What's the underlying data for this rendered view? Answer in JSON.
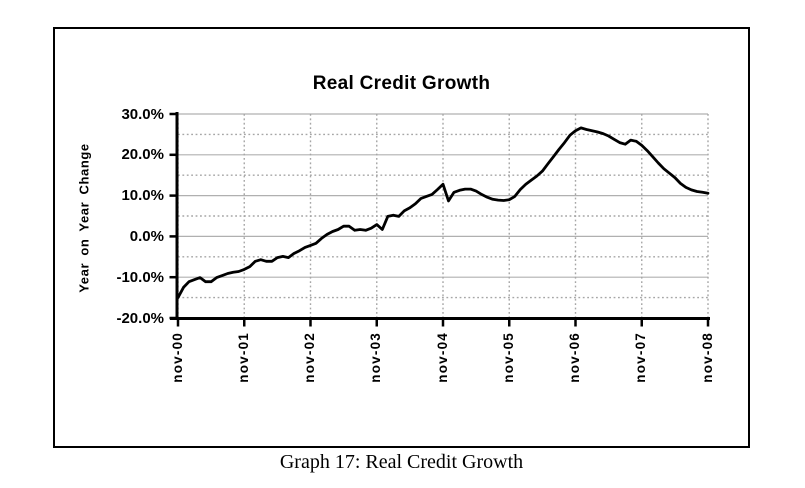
{
  "figure": {
    "caption": "Graph 17: Real Credit Growth"
  },
  "chart_data": {
    "type": "line",
    "title": "Real Credit Growth",
    "xlabel": "",
    "ylabel": "Year on Year Change",
    "frequency": "monthly",
    "x_start": "nov-00",
    "x_end": "nov-08",
    "x_tick_labels": [
      "nov-00",
      "nov-01",
      "nov-02",
      "nov-03",
      "nov-04",
      "nov-05",
      "nov-06",
      "nov-07",
      "nov-08"
    ],
    "y_tick_labels": [
      "30.0%",
      "20.0%",
      "10.0%",
      "0.0%",
      "-10.0%",
      "-20.0%"
    ],
    "y_major_ticks": [
      30,
      20,
      10,
      0,
      -10,
      -20
    ],
    "y_minor_gridlines": [
      25,
      15,
      5,
      -5,
      -15
    ],
    "ylim": [
      -20,
      30
    ],
    "grid": true,
    "legend": "none",
    "series": [
      {
        "name": "Real Credit Growth (YoY % change)",
        "values": [
          -15.0,
          -12.5,
          -11.1,
          -10.6,
          -10.1,
          -11.1,
          -11.1,
          -10.1,
          -9.6,
          -9.1,
          -8.8,
          -8.6,
          -8.1,
          -7.4,
          -6.1,
          -5.7,
          -6.1,
          -6.1,
          -5.2,
          -4.9,
          -5.2,
          -4.2,
          -3.5,
          -2.7,
          -2.2,
          -1.7,
          -0.5,
          0.5,
          1.2,
          1.7,
          2.5,
          2.5,
          1.5,
          1.7,
          1.5,
          2.0,
          2.9,
          1.7,
          4.9,
          5.2,
          4.9,
          6.3,
          7.0,
          8.0,
          9.3,
          9.8,
          10.3,
          11.5,
          12.8,
          8.7,
          10.8,
          11.3,
          11.6,
          11.6,
          11.1,
          10.3,
          9.6,
          9.1,
          8.9,
          8.8,
          9.0,
          9.8,
          11.5,
          12.8,
          13.8,
          14.8,
          16.0,
          17.8,
          19.5,
          21.3,
          23.0,
          24.8,
          25.9,
          26.6,
          26.2,
          25.9,
          25.6,
          25.2,
          24.6,
          23.8,
          23.0,
          22.6,
          23.6,
          23.3,
          22.3,
          21.0,
          19.5,
          18.0,
          16.6,
          15.5,
          14.4,
          13.0,
          12.0,
          11.4,
          11.0,
          10.8,
          10.6
        ]
      }
    ]
  },
  "colors": {
    "line": "#000000",
    "grid_major": "#b0b0b0",
    "grid_minor": "#a6a6a6",
    "axis": "#000000",
    "text": "#000000",
    "border": "#000000",
    "background": "#ffffff"
  }
}
